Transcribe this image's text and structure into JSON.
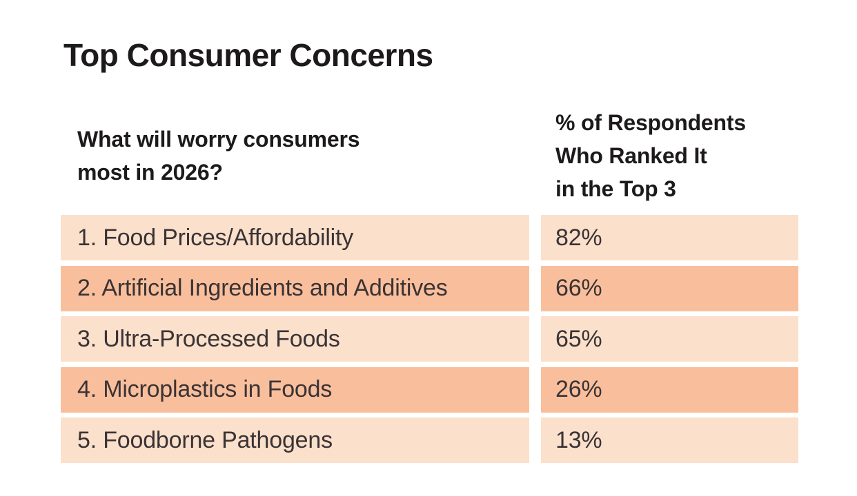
{
  "title": "Top Consumer Concerns",
  "table": {
    "col1_header": "What will worry consumers\nmost in 2026?",
    "col2_header": "% of Respondents\nWho Ranked It\nin the Top 3",
    "rows": [
      {
        "rank_label": "1. Food Prices/Affordability",
        "percent": "82%"
      },
      {
        "rank_label": "2. Artificial Ingredients and Additives",
        "percent": "66%"
      },
      {
        "rank_label": "3. Ultra-Processed Foods",
        "percent": "65%"
      },
      {
        "rank_label": "4. Microplastics in Foods",
        "percent": "26%"
      },
      {
        "rank_label": "5. Foodborne Pathogens",
        "percent": "13%"
      }
    ]
  },
  "chart_data": {
    "type": "table",
    "title": "Top Consumer Concerns",
    "columns": [
      "What will worry consumers most in 2026?",
      "% of Respondents Who Ranked It in the Top 3"
    ],
    "categories": [
      "1. Food Prices/Affordability",
      "2. Artificial Ingredients and Additives",
      "3. Ultra-Processed Foods",
      "4. Microplastics in Foods",
      "5. Foodborne Pathogens"
    ],
    "values": [
      82,
      66,
      65,
      26,
      13
    ],
    "value_unit": "percent",
    "layout_hints": {
      "row_striping": "alternating light/dark peach",
      "grid": "off",
      "legend": "none"
    }
  },
  "colors": {
    "background": "#ffffff",
    "row_light": "#fbe0cc",
    "row_dark": "#f9bf9c",
    "title_text": "#1d1a1b",
    "row_text": "#3a3335"
  }
}
